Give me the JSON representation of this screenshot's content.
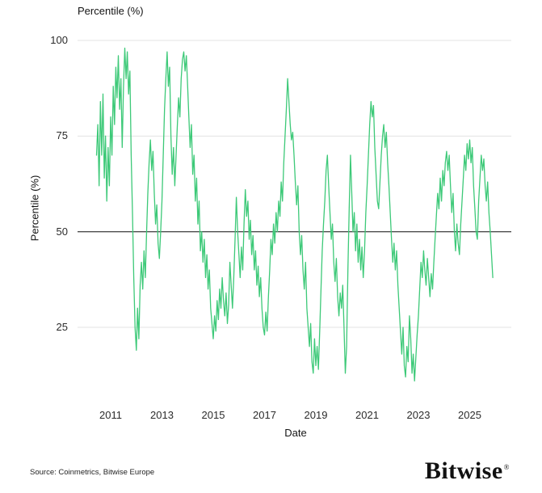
{
  "footer": {
    "source": "Source: Coinmetrics, Bitwise Europe",
    "brand": "Bitwise",
    "brand_mark": "®"
  },
  "chart_data": {
    "type": "line",
    "title": "Percentile (%)",
    "xlabel": "Date",
    "ylabel": "Percentile (%)",
    "x_ticks": [
      "2011",
      "2013",
      "2015",
      "2017",
      "2019",
      "2021",
      "2023",
      "2025"
    ],
    "y_ticks": [
      100,
      75,
      50,
      25
    ],
    "ylim": [
      0,
      100
    ],
    "xlim": [
      2009.7,
      2026.2
    ],
    "midline": 50,
    "grid_on": true,
    "legend": "none",
    "line_color": "#3dc978",
    "grid_color": "#e3e3e3",
    "midline_color": "#4d4d4d",
    "series": [
      {
        "name": "Percentile",
        "start": 2010.45,
        "step": 0.05,
        "values": [
          70,
          78,
          62,
          84,
          70,
          86,
          64,
          75,
          58,
          72,
          62,
          80,
          70,
          88,
          78,
          93,
          85,
          96,
          82,
          90,
          72,
          88,
          98,
          90,
          97,
          86,
          92,
          70,
          55,
          38,
          25,
          19,
          30,
          22,
          36,
          42,
          35,
          45,
          38,
          50,
          60,
          68,
          74,
          66,
          71,
          60,
          52,
          57,
          47,
          43,
          50,
          58,
          70,
          82,
          90,
          97,
          88,
          93,
          75,
          65,
          72,
          62,
          70,
          78,
          85,
          80,
          90,
          95,
          97,
          92,
          96,
          88,
          80,
          72,
          78,
          65,
          70,
          58,
          64,
          52,
          58,
          45,
          50,
          42,
          48,
          38,
          44,
          35,
          40,
          30,
          26,
          22,
          28,
          24,
          32,
          27,
          35,
          30,
          38,
          32,
          28,
          34,
          26,
          31,
          42,
          36,
          30,
          38,
          48,
          59,
          50,
          44,
          38,
          46,
          40,
          52,
          61,
          54,
          58,
          48,
          53,
          44,
          49,
          40,
          45,
          36,
          41,
          33,
          38,
          30,
          25,
          23,
          29,
          24,
          33,
          40,
          48,
          44,
          52,
          47,
          55,
          50,
          58,
          54,
          63,
          58,
          68,
          75,
          82,
          90,
          84,
          78,
          74,
          76,
          70,
          63,
          57,
          62,
          50,
          44,
          49,
          40,
          35,
          42,
          30,
          25,
          20,
          26,
          16,
          13,
          22,
          15,
          20,
          14,
          24,
          35,
          45,
          52,
          58,
          66,
          70,
          62,
          55,
          48,
          52,
          42,
          37,
          43,
          33,
          28,
          34,
          30,
          36,
          25,
          13,
          20,
          40,
          56,
          70,
          60,
          50,
          55,
          45,
          52,
          42,
          48,
          40,
          46,
          38,
          45,
          55,
          62,
          70,
          78,
          84,
          80,
          83,
          72,
          65,
          58,
          56,
          63,
          70,
          75,
          78,
          72,
          76,
          68,
          62,
          55,
          48,
          42,
          47,
          40,
          45,
          36,
          30,
          24,
          18,
          25,
          15,
          12,
          20,
          16,
          28,
          22,
          13,
          18,
          11,
          17,
          23,
          28,
          35,
          42,
          38,
          45,
          40,
          36,
          43,
          38,
          33,
          39,
          35,
          42,
          48,
          54,
          60,
          56,
          64,
          58,
          66,
          62,
          68,
          71,
          66,
          70,
          62,
          55,
          60,
          50,
          45,
          52,
          47,
          44,
          52,
          58,
          64,
          70,
          66,
          73,
          69,
          74,
          68,
          72,
          62,
          56,
          50,
          48,
          58,
          64,
          70,
          66,
          69,
          62,
          58,
          63,
          55,
          50,
          44,
          38
        ]
      }
    ]
  }
}
